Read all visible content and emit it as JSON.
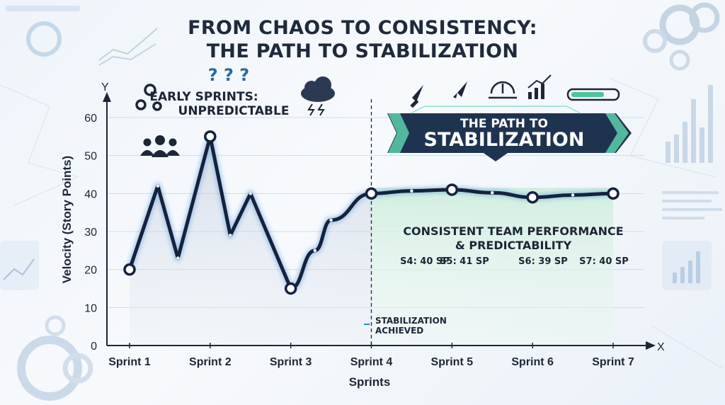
{
  "title": {
    "line1": "FROM CHAOS TO CONSISTENCY:",
    "line2": "THE PATH TO STABILIZATION"
  },
  "annotations": {
    "early_line1": "EARLY SPRINTS:",
    "early_line2": "UNPREDICTABLE",
    "question_marks": "? ? ?",
    "banner_line1": "THE PATH TO",
    "banner_line2": "STABILIZATION",
    "consistent_line1": "CONSISTENT TEAM PERFORMANCE",
    "consistent_line2": "& PREDICTABILITY",
    "sprint_values": [
      "S4: 40 SP",
      "S5: 41 SP",
      "S6: 39 SP",
      "S7: 40 SP"
    ],
    "stabilization_line1": "STABILIZATION",
    "stabilization_line2": "ACHIEVED"
  },
  "icons": [
    "gears-icon",
    "team-icon",
    "storm-cloud-icon",
    "rocket-icon",
    "rocket-icon",
    "gauge-icon",
    "bar-chart-growth-icon",
    "progress-bar-icon"
  ],
  "colors": {
    "line": "#15223d",
    "point_fill": "#ffffff",
    "stable_fill": "#d9f3e6",
    "banner_bg": "#1e3350",
    "banner_accent": "#5ed9b0",
    "title": "#1f2a3a"
  },
  "chart_data": {
    "type": "line",
    "title": "FROM CHAOS TO CONSISTENCY: THE PATH TO STABILIZATION",
    "xlabel": "Sprints",
    "ylabel": "Velocity (Story Points)",
    "x_axis_letter": "X",
    "y_axis_letter": "Y",
    "categories": [
      "Sprint 1",
      "Sprint 2",
      "Sprint 3",
      "Sprint 4",
      "Sprint 5",
      "Sprint 6",
      "Sprint 7"
    ],
    "yticks": [
      0,
      10,
      20,
      30,
      40,
      50,
      60
    ],
    "ylim": [
      0,
      60
    ],
    "grid": true,
    "series": [
      {
        "values": [
          20,
          55,
          15,
          40,
          41,
          39,
          40
        ],
        "path_x": [
          1,
          1.35,
          1.6,
          2,
          2.25,
          2.5,
          3,
          3.3,
          3.5,
          4,
          4.5,
          5,
          5.5,
          6,
          6.5,
          7
        ],
        "path_y": [
          20,
          42,
          23,
          55,
          29,
          40,
          15,
          25,
          33,
          40,
          40.7,
          41,
          40.2,
          39,
          39.6,
          40
        ]
      }
    ],
    "stabilization_marker_x": 4
  }
}
